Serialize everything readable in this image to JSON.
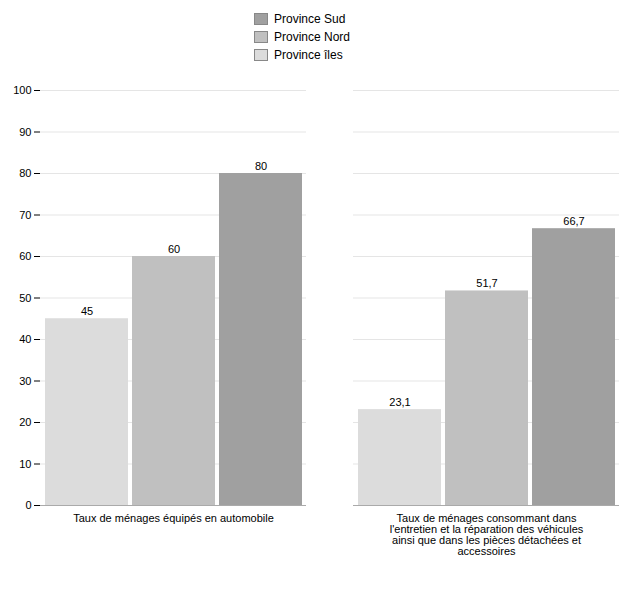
{
  "chart_data": {
    "type": "bar",
    "categories": [
      "Taux de ménages équipés en automobile",
      "Taux de ménages consommant dans\nl'entretien et la réparation des véhicules\nainsi que dans les pièces détachées et\naccessoires"
    ],
    "series": [
      {
        "name": "Province îles",
        "color": "#dcdcdc",
        "values": [
          45,
          23.1
        ],
        "value_labels": [
          "45",
          "23,1"
        ]
      },
      {
        "name": "Province Nord",
        "color": "#c0c0c0",
        "values": [
          60,
          51.7
        ],
        "value_labels": [
          "60",
          "51,7"
        ]
      },
      {
        "name": "Province Sud",
        "color": "#a0a0a0",
        "values": [
          80,
          66.7
        ],
        "value_labels": [
          "80",
          "66,7"
        ]
      }
    ],
    "ylim": [
      0,
      100
    ],
    "yticks": [
      0,
      10,
      20,
      30,
      40,
      50,
      60,
      70,
      80,
      90,
      100
    ],
    "grid": true,
    "data_labels": true,
    "legend": "top"
  }
}
